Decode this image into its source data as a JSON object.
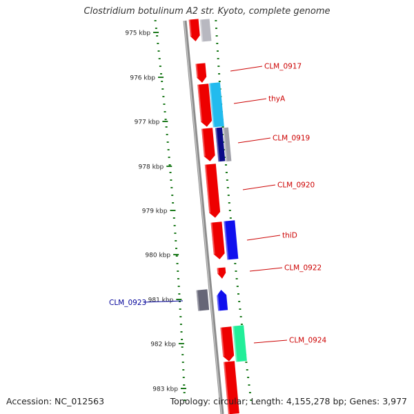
{
  "title": "Clostridium botulinum A2 str. Kyoto, complete genome",
  "accession": "Accession: NC_012563",
  "summary": "Topology: circular; Length: 4,155,278 bp; Genes: 3,977",
  "colors": {
    "backbone": "#8c8c8c",
    "tick": "#1d7a1d",
    "label_red": "#cc0000",
    "label_blue": "#000099"
  },
  "kbp_labels": [
    "975 kbp",
    "976 kbp",
    "977 kbp",
    "978 kbp",
    "979 kbp",
    "980 kbp",
    "981 kbp",
    "982 kbp",
    "983 kbp"
  ],
  "gene_labels": [
    {
      "text": "CLM_0917",
      "color": "#cc0000"
    },
    {
      "text": "thyA",
      "color": "#cc0000"
    },
    {
      "text": "CLM_0919",
      "color": "#cc0000"
    },
    {
      "text": "CLM_0920",
      "color": "#cc0000"
    },
    {
      "text": "thiD",
      "color": "#cc0000"
    },
    {
      "text": "CLM_0922",
      "color": "#cc0000"
    },
    {
      "text": "CLM_0923",
      "color": "#000099"
    },
    {
      "text": "CLM_0924",
      "color": "#cc0000"
    }
  ]
}
